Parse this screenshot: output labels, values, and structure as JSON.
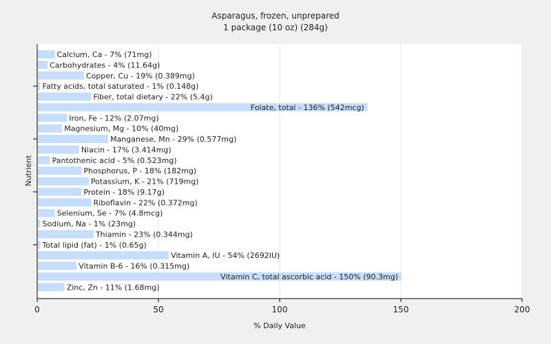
{
  "chart_data": {
    "type": "bar",
    "orientation": "horizontal",
    "title": "Asparagus, frozen, unprepared",
    "subtitle": "1 package (10 oz) (284g)",
    "xlabel": "% Daily Value",
    "ylabel": "Nutrient",
    "xlim": [
      0,
      200
    ],
    "xticks": [
      0,
      50,
      100,
      150,
      200
    ],
    "grid": true,
    "legend": "none",
    "bar_color": "#c7defa",
    "categories": [
      "Calcium, Ca",
      "Carbohydrates",
      "Copper, Cu",
      "Fatty acids, total saturated",
      "Fiber, total dietary",
      "Folate, total",
      "Iron, Fe",
      "Magnesium, Mg",
      "Manganese, Mn",
      "Niacin",
      "Pantothenic acid",
      "Phosphorus, P",
      "Potassium, K",
      "Protein",
      "Riboflavin",
      "Selenium, Se",
      "Sodium, Na",
      "Thiamin",
      "Total lipid (fat)",
      "Vitamin A, IU",
      "Vitamin B-6",
      "Vitamin C, total ascorbic acid",
      "Zinc, Zn"
    ],
    "values": [
      7,
      4,
      19,
      1,
      22,
      136,
      12,
      10,
      29,
      17,
      5,
      18,
      21,
      18,
      22,
      7,
      1,
      23,
      1,
      54,
      16,
      150,
      11
    ],
    "data_labels": [
      "Calcium, Ca - 7% (71mg)",
      "Carbohydrates - 4% (11.64g)",
      "Copper, Cu - 19% (0.389mg)",
      "Fatty acids, total saturated - 1% (0.148g)",
      "Fiber, total dietary - 22% (5.4g)",
      "Folate, total - 136% (542mcg)",
      "Iron, Fe - 12% (2.07mg)",
      "Magnesium, Mg - 10% (40mg)",
      "Manganese, Mn - 29% (0.577mg)",
      "Niacin - 17% (3.414mg)",
      "Pantothenic acid - 5% (0.523mg)",
      "Phosphorus, P - 18% (182mg)",
      "Potassium, K - 21% (719mg)",
      "Protein - 18% (9.17g)",
      "Riboflavin - 22% (0.372mg)",
      "Selenium, Se - 7% (4.8mcg)",
      "Sodium, Na - 1% (23mg)",
      "Thiamin - 23% (0.344mg)",
      "Total lipid (fat) - 1% (0.65g)",
      "Vitamin A, IU - 54% (2692IU)",
      "Vitamin B-6 - 16% (0.315mg)",
      "Vitamin C, total ascorbic acid - 150% (90.3mg)",
      "Zinc, Zn - 11% (1.68mg)"
    ]
  }
}
